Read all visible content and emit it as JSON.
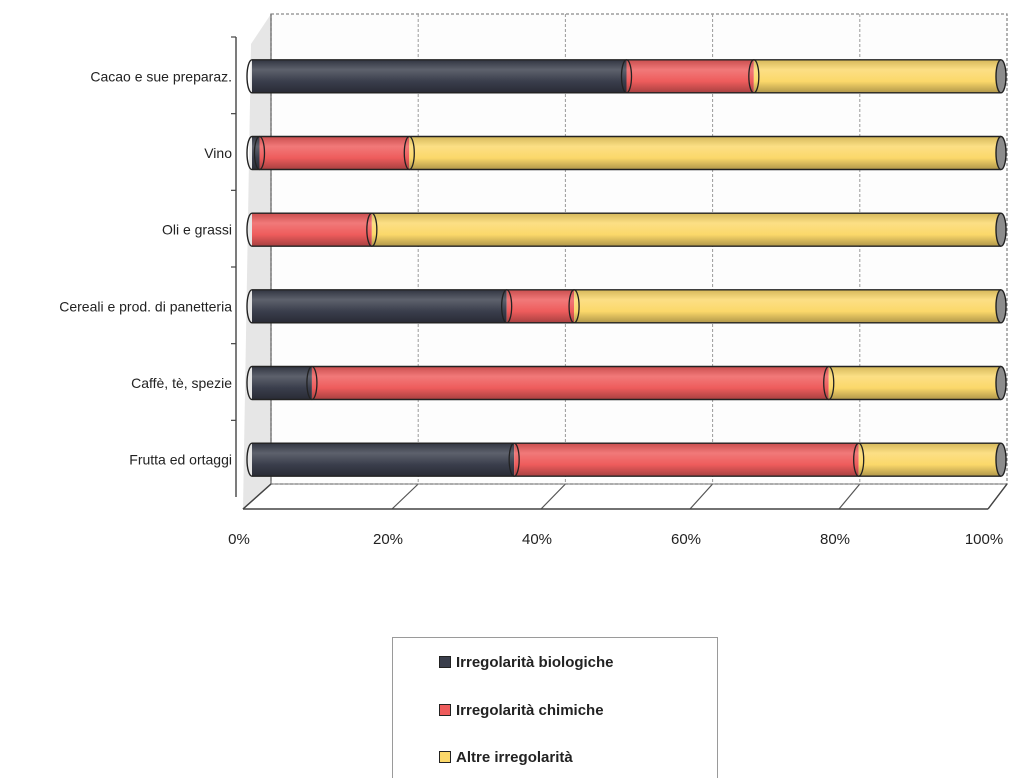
{
  "chart_data": {
    "type": "bar",
    "orientation": "horizontal",
    "stacked": true,
    "percent": true,
    "categories": [
      "Cacao e sue preparaz.",
      "Vino",
      "Oli e grassi",
      "Cereali e prod. di panetteria",
      "Caffè, tè, spezie",
      "Frutta ed ortaggi"
    ],
    "series": [
      {
        "name": "Irregolarità biologiche",
        "color": "#3a3e4c",
        "values": [
          50,
          1,
          0,
          34,
          8,
          35
        ]
      },
      {
        "name": "Irregolarità chimiche",
        "color": "#ee5c5c",
        "values": [
          17,
          20,
          16,
          9,
          69,
          46
        ]
      },
      {
        "name": "Altre irregolarità",
        "color": "#fbd86a",
        "values": [
          33,
          79,
          84,
          57,
          23,
          19
        ]
      }
    ],
    "x_ticks": [
      "0%",
      "20%",
      "40%",
      "60%",
      "80%",
      "100%"
    ],
    "xlim": [
      0,
      100
    ],
    "grid": true,
    "legend_position": "bottom"
  }
}
